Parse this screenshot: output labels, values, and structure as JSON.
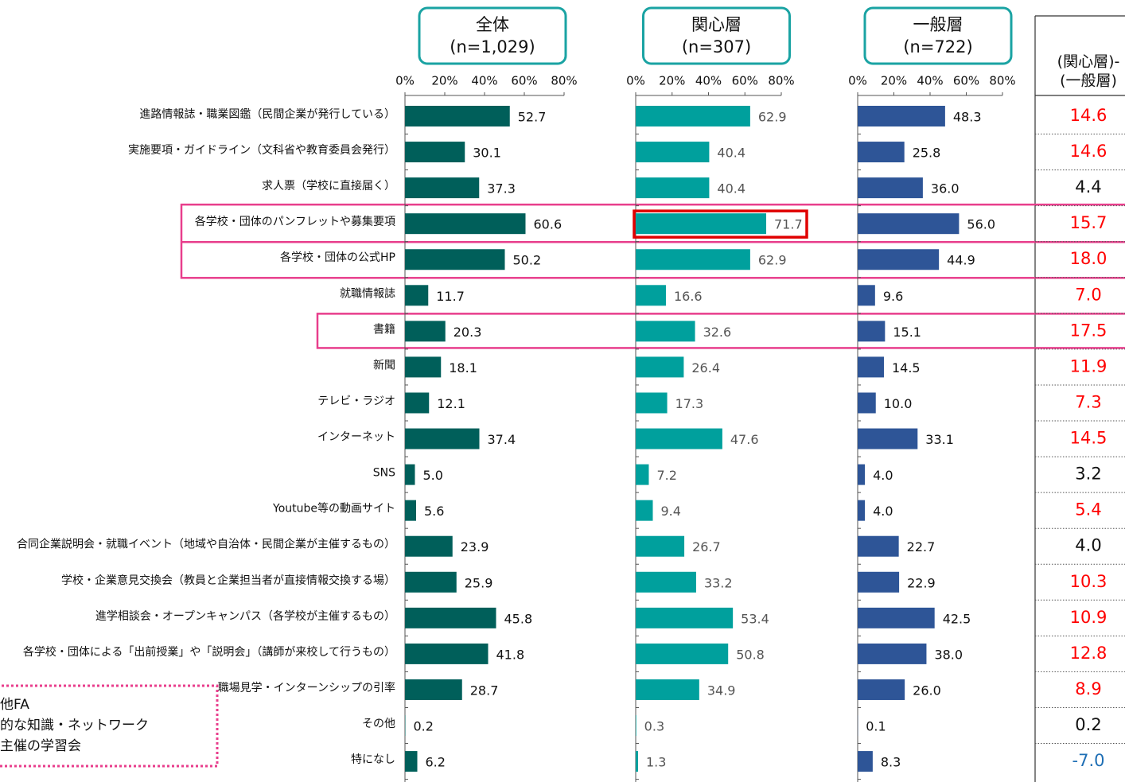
{
  "chart_data": [
    {
      "type": "bar",
      "title": "全体",
      "subtitle": "(n=1,029)",
      "categories": [
        "進路情報誌・職業図鑑（民間企業が発行している）",
        "実施要項・ガイドライン（文科省や教育委員会発行）",
        "求人票（学校に直接届く）",
        "各学校・団体のパンフレットや募集要項",
        "各学校・団体の公式HP",
        "就職情報誌",
        "書籍",
        "新聞",
        "テレビ・ラジオ",
        "インターネット",
        "SNS",
        "Youtube等の動画サイト",
        "合同企業説明会・就職イベント（地域や自治体・民間企業が主催するもの）",
        "学校・企業意見交換会（教員と企業担当者が直接情報交換する場）",
        "進学相談会・オープンキャンパス（各学校が主催するもの）",
        "各学校・団体による「出前授業」や「説明会」（講師が来校して行うもの）",
        "職場見学・インターンシップの引率",
        "その他",
        "特になし"
      ],
      "values": [
        52.7,
        30.1,
        37.3,
        60.6,
        50.2,
        11.7,
        20.3,
        18.1,
        12.1,
        37.4,
        5.0,
        5.6,
        23.9,
        25.9,
        45.8,
        41.8,
        28.7,
        0.2,
        6.2
      ],
      "value_labels": [
        "52.7",
        "30.1",
        "37.3",
        "60.6",
        "50.2",
        "11.7",
        "20.3",
        "18.1",
        "12.1",
        "37.4",
        "5.0",
        "5.6",
        "23.9",
        "25.9",
        "45.8",
        "41.8",
        "28.7",
        "0.2",
        "6.2"
      ],
      "color": "#005f5a",
      "label_color": "#111111",
      "xlim": [
        0,
        80
      ],
      "xticks": [
        {
          "value": 0,
          "label": "0%"
        },
        {
          "value": 20,
          "label": "20%"
        },
        {
          "value": 40,
          "label": "40%"
        },
        {
          "value": 60,
          "label": "60%"
        },
        {
          "value": 80,
          "label": "80%"
        }
      ]
    },
    {
      "type": "bar",
      "title": "関心層",
      "subtitle": "(n=307)",
      "values": [
        62.9,
        40.4,
        40.4,
        71.7,
        62.9,
        16.6,
        32.6,
        26.4,
        17.3,
        47.6,
        7.2,
        9.4,
        26.7,
        33.2,
        53.4,
        50.8,
        34.9,
        0.3,
        1.3
      ],
      "value_labels": [
        "62.9",
        "40.4",
        "40.4",
        "71.7",
        "62.9",
        "16.6",
        "32.6",
        "26.4",
        "17.3",
        "47.6",
        "7.2",
        "9.4",
        "26.7",
        "33.2",
        "53.4",
        "50.8",
        "34.9",
        "0.3",
        "1.3"
      ],
      "color": "#00a09d",
      "label_color": "#555555",
      "xlim": [
        0,
        80
      ],
      "xticks": [
        {
          "value": 0,
          "label": "0%"
        },
        {
          "value": 20,
          "label": "20%"
        },
        {
          "value": 40,
          "label": "40%"
        },
        {
          "value": 60,
          "label": "60%"
        },
        {
          "value": 80,
          "label": "80%"
        }
      ]
    },
    {
      "type": "bar",
      "title": "一般層",
      "subtitle": "(n=722)",
      "values": [
        48.3,
        25.8,
        36.0,
        56.0,
        44.9,
        9.6,
        15.1,
        14.5,
        10.0,
        33.1,
        4.0,
        4.0,
        22.7,
        22.9,
        42.5,
        38.0,
        26.0,
        0.1,
        8.3
      ],
      "value_labels": [
        "48.3",
        "25.8",
        "36.0",
        "56.0",
        "44.9",
        "9.6",
        "15.1",
        "14.5",
        "10.0",
        "33.1",
        "4.0",
        "4.0",
        "22.7",
        "22.9",
        "42.5",
        "38.0",
        "26.0",
        "0.1",
        "8.3"
      ],
      "color": "#2e5597",
      "label_color": "#111111",
      "xlim": [
        0,
        80
      ],
      "xticks": [
        {
          "value": 0,
          "label": "0%"
        },
        {
          "value": 20,
          "label": "20%"
        },
        {
          "value": 40,
          "label": "40%"
        },
        {
          "value": 60,
          "label": "60%"
        },
        {
          "value": 80,
          "label": "80%"
        }
      ]
    }
  ],
  "difference": {
    "header": [
      "(関心層)-",
      "(一般層)"
    ],
    "values": [
      14.6,
      14.6,
      4.4,
      15.7,
      18.0,
      7.0,
      17.5,
      11.9,
      7.3,
      14.5,
      3.2,
      5.4,
      4.0,
      10.3,
      10.9,
      12.8,
      8.9,
      0.2,
      -7.0
    ],
    "value_labels": [
      "14.6",
      "14.6",
      "4.4",
      "15.7",
      "18.0",
      "7.0",
      "17.5",
      "11.9",
      "7.3",
      "14.5",
      "3.2",
      "5.4",
      "4.0",
      "10.3",
      "10.9",
      "12.8",
      "8.9",
      "0.2",
      "-7.0"
    ],
    "colors": [
      "#ff0000",
      "#ff0000",
      "#111111",
      "#ff0000",
      "#ff0000",
      "#ff0000",
      "#ff0000",
      "#ff0000",
      "#ff0000",
      "#ff0000",
      "#111111",
      "#ff0000",
      "#111111",
      "#ff0000",
      "#ff0000",
      "#ff0000",
      "#ff0000",
      "#111111",
      "#1f6fb5"
    ]
  },
  "note": [
    "他FA",
    "的な知識・ネットワーク",
    "主催の学習会"
  ]
}
